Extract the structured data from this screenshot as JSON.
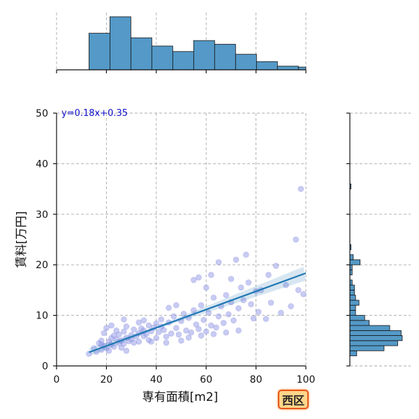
{
  "chart_data": {
    "type": "scatter",
    "title": "",
    "xlabel": "専有面積[m2]",
    "ylabel": "賃料[万円]",
    "xlim": [
      0,
      100
    ],
    "ylim": [
      0,
      50
    ],
    "x_ticks": [
      0,
      20,
      40,
      60,
      80,
      100
    ],
    "y_ticks": [
      0,
      10,
      20,
      30,
      40,
      50
    ],
    "grid": true,
    "annotation": "y=0.18x+0.35",
    "regression": {
      "slope": 0.18,
      "intercept": 0.35,
      "x_range": [
        13,
        100
      ]
    },
    "colors": {
      "points": "#9aa0e8",
      "regression_line": "#1f77b4",
      "histogram": "#5499c7",
      "annotation": "#1010cc"
    },
    "marginal_x_histogram": {
      "bin_edges": [
        13,
        21.4,
        29.8,
        38.2,
        46.6,
        55,
        63.4,
        71.8,
        80.2,
        88.6,
        97,
        100
      ],
      "counts": [
        40,
        58,
        35,
        26,
        20,
        32,
        28,
        17,
        9,
        4,
        3
      ]
    },
    "marginal_y_histogram": {
      "bin_edges": [
        2,
        3,
        4,
        5,
        6,
        7,
        8,
        9,
        10,
        11,
        12,
        13,
        14,
        15,
        16,
        17,
        18,
        19,
        20,
        21,
        22,
        23,
        24,
        25,
        26,
        27,
        28,
        29,
        30,
        31,
        32,
        33,
        34,
        35,
        36
      ],
      "counts": [
        6,
        30,
        42,
        46,
        45,
        35,
        17,
        13,
        5,
        5,
        8,
        5,
        4,
        4,
        2,
        0,
        2,
        2,
        9,
        3,
        0,
        1,
        0,
        0,
        0,
        0,
        0,
        0,
        0,
        0,
        0,
        0,
        0,
        1
      ]
    },
    "points": [
      [
        13,
        2.4
      ],
      [
        15,
        3.5
      ],
      [
        16,
        2.8
      ],
      [
        17,
        4.5
      ],
      [
        18,
        3.2
      ],
      [
        18,
        5.0
      ],
      [
        19,
        4.0
      ],
      [
        19,
        6.5
      ],
      [
        20,
        3.5
      ],
      [
        20,
        7.5
      ],
      [
        21,
        4.8
      ],
      [
        21,
        3.0
      ],
      [
        22,
        5.5
      ],
      [
        22,
        4.2
      ],
      [
        23,
        6.0
      ],
      [
        23,
        3.8
      ],
      [
        24,
        5.2
      ],
      [
        24,
        7.0
      ],
      [
        25,
        4.5
      ],
      [
        25,
        6.2
      ],
      [
        26,
        5.0
      ],
      [
        26,
        3.6
      ],
      [
        27,
        6.8
      ],
      [
        27,
        4.4
      ],
      [
        28,
        5.6
      ],
      [
        28,
        7.8
      ],
      [
        29,
        4.9
      ],
      [
        30,
        6.1
      ],
      [
        30,
        5.3
      ],
      [
        31,
        7.2
      ],
      [
        31,
        4.6
      ],
      [
        32,
        5.8
      ],
      [
        33,
        6.5
      ],
      [
        33,
        4.8
      ],
      [
        34,
        7.4
      ],
      [
        35,
        5.9
      ],
      [
        35,
        9.0
      ],
      [
        36,
        6.3
      ],
      [
        37,
        8.0
      ],
      [
        37,
        5.1
      ],
      [
        38,
        6.9
      ],
      [
        39,
        7.6
      ],
      [
        40,
        5.5
      ],
      [
        40,
        8.4
      ],
      [
        41,
        6.7
      ],
      [
        42,
        9.2
      ],
      [
        43,
        7.1
      ],
      [
        44,
        5.8
      ],
      [
        45,
        8.6
      ],
      [
        46,
        6.4
      ],
      [
        47,
        9.8
      ],
      [
        48,
        7.5
      ],
      [
        49,
        6.2
      ],
      [
        50,
        8.9
      ],
      [
        51,
        10.3
      ],
      [
        52,
        7.0
      ],
      [
        53,
        9.5
      ],
      [
        54,
        6.6
      ],
      [
        55,
        11.0
      ],
      [
        56,
        8.2
      ],
      [
        57,
        7.3
      ],
      [
        58,
        12.0
      ],
      [
        59,
        9.1
      ],
      [
        60,
        6.8
      ],
      [
        61,
        10.5
      ],
      [
        62,
        8.0
      ],
      [
        63,
        13.5
      ],
      [
        64,
        7.6
      ],
      [
        65,
        20.5
      ],
      [
        65,
        9.8
      ],
      [
        66,
        11.8
      ],
      [
        67,
        8.5
      ],
      [
        68,
        14.0
      ],
      [
        69,
        10.2
      ],
      [
        70,
        12.6
      ],
      [
        71,
        9.0
      ],
      [
        72,
        21.0
      ],
      [
        73,
        11.4
      ],
      [
        74,
        15.5
      ],
      [
        75,
        13.0
      ],
      [
        76,
        22.0
      ],
      [
        77,
        16.5
      ],
      [
        78,
        12.2
      ],
      [
        79,
        9.4
      ],
      [
        80,
        14.8
      ],
      [
        81,
        10.7
      ],
      [
        82,
        15.0
      ],
      [
        84,
        9.3
      ],
      [
        85,
        18.0
      ],
      [
        86,
        12.5
      ],
      [
        88,
        19.8
      ],
      [
        90,
        10.5
      ],
      [
        92,
        16.0
      ],
      [
        94,
        11.8
      ],
      [
        96,
        25.0
      ],
      [
        97,
        15.0
      ],
      [
        98,
        35.0
      ],
      [
        99,
        14.2
      ],
      [
        55,
        17.0
      ],
      [
        60,
        15.5
      ],
      [
        57,
        17.5
      ],
      [
        48,
        12.0
      ],
      [
        62,
        18.0
      ],
      [
        70,
        17.2
      ],
      [
        45,
        11.5
      ],
      [
        35,
        7.0
      ],
      [
        38,
        4.8
      ],
      [
        28,
        3.0
      ],
      [
        44,
        4.6
      ],
      [
        50,
        5.0
      ],
      [
        53,
        5.6
      ],
      [
        58,
        6.0
      ],
      [
        63,
        6.3
      ],
      [
        68,
        6.6
      ],
      [
        73,
        7.0
      ],
      [
        27,
        9.2
      ],
      [
        22,
        8.0
      ],
      [
        18,
        4.2
      ],
      [
        33,
        8.6
      ],
      [
        42,
        7.8
      ]
    ]
  },
  "badge": {
    "label": "西区"
  }
}
